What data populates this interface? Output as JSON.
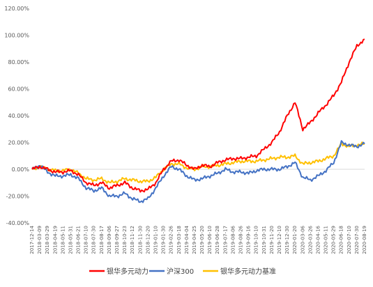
{
  "chart_data": {
    "type": "line",
    "title": "",
    "xlabel": "",
    "ylabel": "",
    "ylim": [
      -40,
      120
    ],
    "y_ticks": [
      -40,
      -20,
      0,
      20,
      40,
      60,
      80,
      100,
      120
    ],
    "y_tick_labels": [
      "-40.00%",
      "-20.00%",
      "0.00%",
      "20.00%",
      "40.00%",
      "60.00%",
      "80.00%",
      "100.00%",
      "120.00%"
    ],
    "x_tick_labels": [
      "2017-12-14",
      "2018-03-09",
      "2018-03-29",
      "2018-04-19",
      "2018-05-11",
      "2018-05-31",
      "2018-06-21",
      "2018-07-10",
      "2018-07-30",
      "2018-08-17",
      "2018-09-06",
      "2018-09-27",
      "2018-10-23",
      "2018-11-12",
      "2018-11-30",
      "2018-12-20",
      "2019-01-10",
      "2019-01-30",
      "2019-02-26",
      "2019-03-18",
      "2019-04-04",
      "2019-04-25",
      "2019-05-20",
      "2019-06-10",
      "2019-06-28",
      "2019-07-17",
      "2019-08-06",
      "2019-08-26",
      "2019-09-16",
      "2019-10-10",
      "2019-10-31",
      "2019-11-20",
      "2019-12-10",
      "2019-12-30",
      "2020-01-20",
      "2020-03-06",
      "2020-03-26",
      "2020-04-16",
      "2020-05-11",
      "2020-05-29",
      "2020-06-18",
      "2020-07-10",
      "2020-07-30",
      "2020-08-19"
    ],
    "grid": false,
    "legend_position": "bottom",
    "x": [
      0,
      1,
      2,
      3,
      4,
      5,
      6,
      7,
      8,
      9,
      10,
      11,
      12,
      13,
      14,
      15,
      16,
      17,
      18,
      19,
      20,
      21,
      22,
      23,
      24,
      25,
      26,
      27,
      28,
      29,
      30,
      31,
      32,
      33,
      34,
      35,
      36,
      37,
      38,
      39,
      40,
      41,
      42,
      43
    ],
    "series": [
      {
        "name": "银华多元动力",
        "color": "#ff0000",
        "values": [
          0,
          2,
          0,
          -2,
          -2,
          -1,
          -4,
          -10,
          -12,
          -10,
          -14,
          -12,
          -10,
          -14,
          -16,
          -15,
          -10,
          0,
          6,
          7,
          3,
          0,
          3,
          2,
          5,
          7,
          8,
          8,
          9,
          10,
          15,
          20,
          28,
          40,
          50,
          30,
          35,
          42,
          48,
          55,
          65,
          80,
          92,
          97
        ]
      },
      {
        "name": "沪深300",
        "color": "#4472c4",
        "values": [
          0,
          3,
          -2,
          -5,
          -5,
          -4,
          -7,
          -14,
          -16,
          -14,
          -20,
          -20,
          -18,
          -22,
          -24,
          -22,
          -14,
          -5,
          2,
          0,
          -5,
          -8,
          -7,
          -5,
          -3,
          0,
          -2,
          -2,
          -3,
          -1,
          0,
          0,
          0,
          2,
          5,
          -6,
          -8,
          -5,
          -1,
          5,
          20,
          18,
          17,
          19
        ]
      },
      {
        "name": "银华多元动力基准",
        "color": "#ffc000",
        "values": [
          0,
          2,
          0,
          -1,
          -1,
          0,
          -3,
          -7,
          -8,
          -7,
          -10,
          -9,
          -7,
          -8,
          -9,
          -9,
          -6,
          0,
          4,
          4,
          1,
          0,
          2,
          2,
          3,
          4,
          5,
          6,
          6,
          6,
          7,
          8,
          9,
          9,
          10,
          4,
          5,
          6,
          8,
          10,
          19,
          17,
          18,
          19
        ]
      }
    ]
  }
}
